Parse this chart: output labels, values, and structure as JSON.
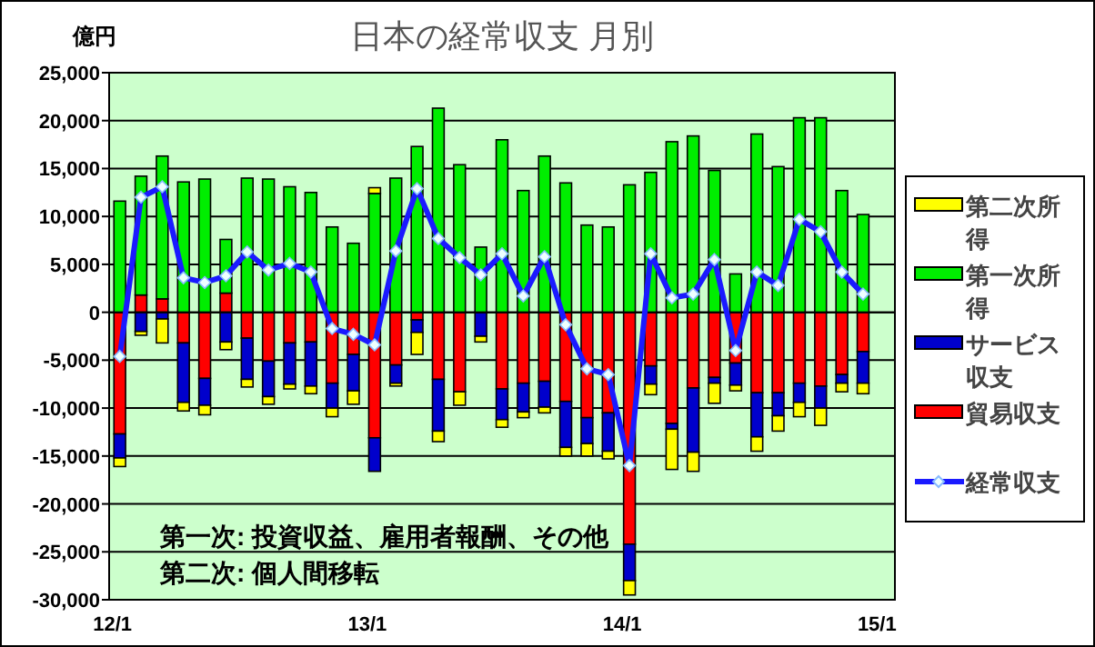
{
  "chart_data": {
    "type": "bar",
    "title": "日本の経常収支 月別",
    "ylabel": "億円",
    "stacked": true,
    "grid": "y",
    "legend": "right",
    "marker": "diamond",
    "categories": [
      "12/1",
      null,
      null,
      null,
      null,
      null,
      null,
      null,
      null,
      null,
      null,
      null,
      "13/1",
      null,
      null,
      null,
      null,
      null,
      null,
      null,
      null,
      null,
      null,
      null,
      "14/1",
      null,
      null,
      null,
      null,
      null,
      null,
      null,
      null,
      null,
      null,
      null,
      "15/1"
    ],
    "ylim": [
      -30000,
      25000
    ],
    "yticks": [
      {
        "value": -30000,
        "label": "-30,000"
      },
      {
        "value": -25000,
        "label": "-25,000"
      },
      {
        "value": -20000,
        "label": "-20,000"
      },
      {
        "value": -15000,
        "label": "-15,000"
      },
      {
        "value": -10000,
        "label": "-10,000"
      },
      {
        "value": -5000,
        "label": "-5,000"
      },
      0,
      {
        "value": 5000,
        "label": "5,000"
      },
      {
        "value": 10000,
        "label": "10,000"
      },
      {
        "value": 15000,
        "label": "15,000"
      },
      {
        "value": 20000,
        "label": "20,000"
      },
      {
        "value": 25000,
        "label": "25,000"
      }
    ],
    "series": [
      {
        "name": "貿易収支",
        "color": "#ff0000",
        "values": [
          -12700,
          1800,
          1400,
          -3200,
          -6900,
          2000,
          -2700,
          -5100,
          -3200,
          -3100,
          -7400,
          -4400,
          -13100,
          -5500,
          -800,
          -7000,
          -8300,
          null,
          -8000,
          -7400,
          -7200,
          -9300,
          -11000,
          -10500,
          -24200,
          -5600,
          -11600,
          -7900,
          -6800,
          -5300,
          -8400,
          -8400,
          -7400,
          -7700,
          -6500,
          -4100,
          null
        ]
      },
      {
        "name": "サービス収支",
        "color": "#0000cc",
        "values": [
          -2500,
          -2000,
          -700,
          -6200,
          -2800,
          -3100,
          -4300,
          -3700,
          -4300,
          -4600,
          -2600,
          -3800,
          -3500,
          -1900,
          -1300,
          -5400,
          null,
          -2500,
          -3200,
          -3000,
          -2700,
          -4800,
          -2700,
          -4000,
          -3800,
          -1900,
          -600,
          -6700,
          -600,
          -2300,
          -4600,
          -2400,
          -2000,
          -2300,
          -900,
          -3300,
          null
        ]
      },
      {
        "name": "第一次所得",
        "color": "#00ee00",
        "values": [
          11600,
          12400,
          14900,
          13600,
          13900,
          5600,
          14000,
          13900,
          13100,
          12500,
          8900,
          7200,
          12400,
          14000,
          17300,
          21300,
          15400,
          6800,
          18000,
          12700,
          16300,
          13500,
          9100,
          8900,
          13300,
          14600,
          17800,
          18400,
          14800,
          4000,
          18600,
          15200,
          20300,
          20300,
          12700,
          10200,
          null
        ]
      },
      {
        "name": "第二次所得",
        "color": "#ffff00",
        "values": [
          -900,
          -400,
          -2500,
          -900,
          -1000,
          -800,
          -800,
          -800,
          -500,
          -800,
          -900,
          -1400,
          600,
          -300,
          -2300,
          -1100,
          -1400,
          -600,
          -800,
          -600,
          -600,
          -900,
          -1300,
          -800,
          -1500,
          -1100,
          -4200,
          -2000,
          -2100,
          -600,
          -1500,
          -1600,
          -1500,
          -1800,
          -900,
          -1100,
          null
        ]
      },
      {
        "name": "経常収支",
        "type": "line",
        "color": "#1a1aff",
        "values": [
          -4600,
          12000,
          13100,
          3600,
          3100,
          3800,
          6300,
          4400,
          5100,
          4200,
          -1700,
          -2300,
          -3400,
          6400,
          12900,
          7700,
          5700,
          3900,
          6100,
          1700,
          5800,
          -1300,
          -5900,
          -6500,
          -16000,
          6100,
          1500,
          1900,
          5500,
          -4000,
          4200,
          2800,
          9700,
          8400,
          4200,
          1900,
          null
        ]
      }
    ],
    "annotations": [
      "第一次: 投資収益、雇用者報酬、その他",
      "第二次: 個人間移転"
    ]
  }
}
